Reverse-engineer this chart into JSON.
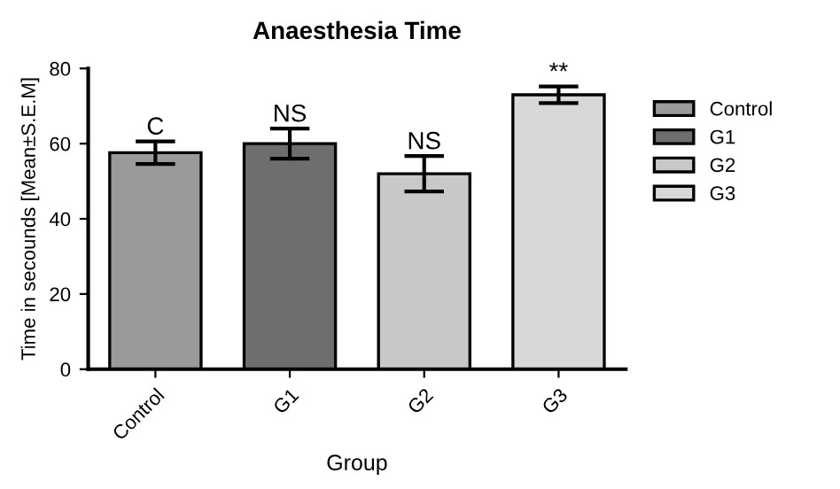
{
  "chart_data": {
    "type": "bar",
    "title": "Anaesthesia Time",
    "xlabel": "Group",
    "ylabel": "Time in secounds [Mean±S.E.M]",
    "categories": [
      "Control",
      "G1",
      "G2",
      "G3"
    ],
    "series": [
      {
        "name": "Control",
        "color": "#9a9a9a",
        "values": [
          57.6,
          null,
          null,
          null
        ],
        "errors": [
          3,
          null,
          null,
          null
        ],
        "value_labels": [
          "C",
          null,
          null,
          null
        ]
      },
      {
        "name": "G1",
        "color": "#6e6e6e",
        "values": [
          null,
          60,
          null,
          null
        ],
        "errors": [
          null,
          4,
          null,
          null
        ],
        "value_labels": [
          null,
          "NS",
          null,
          null
        ]
      },
      {
        "name": "G2",
        "color": "#c8c8c8",
        "values": [
          null,
          null,
          52,
          null
        ],
        "errors": [
          null,
          null,
          4.7,
          null
        ],
        "value_labels": [
          null,
          null,
          "NS",
          null
        ]
      },
      {
        "name": "G3",
        "color": "#d8d8d8",
        "values": [
          null,
          null,
          null,
          73
        ],
        "errors": [
          null,
          null,
          null,
          2.2
        ],
        "value_labels": [
          null,
          null,
          null,
          "**"
        ]
      }
    ],
    "ylim": [
      0,
      80
    ],
    "yticks": [
      0,
      20,
      40,
      60,
      80
    ],
    "grid": false,
    "legend": "right"
  }
}
